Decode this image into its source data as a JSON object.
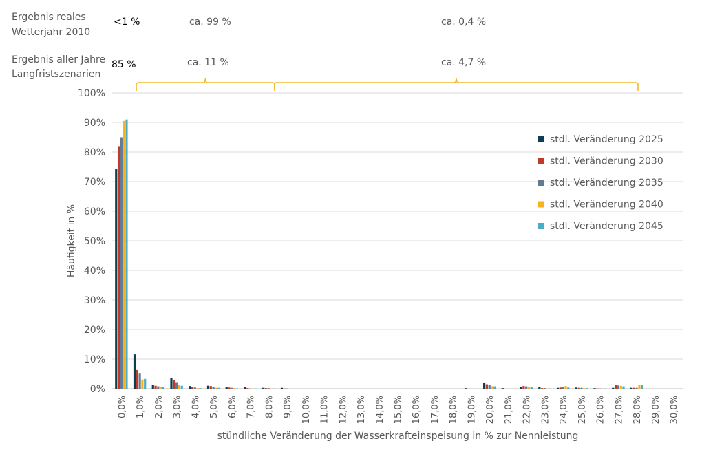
{
  "annotations": {
    "row1_label_line1": "Ergebnis reales",
    "row1_label_line2": "Wetterjahr 2010",
    "row1_val_a": "<1 %",
    "row1_val_b": "ca. 99 %",
    "row1_val_c": "ca. 0,4 %",
    "row2_label_line1": "Ergebnis aller Jahre",
    "row2_label_line2": "Langfristszenarien",
    "row2_val_a": "85 %",
    "row2_val_b": "ca. 11 %",
    "row2_val_c": "ca. 4,7 %",
    "bracket_color": "#F2B827"
  },
  "chart_data": {
    "type": "bar",
    "title": "",
    "xlabel": "stündliche Veränderung der Wasserkrafteinspeisung in % zur Nennleistung",
    "ylabel": "Häufigkeit in %",
    "ylim": [
      0,
      100
    ],
    "yticks": [
      "0%",
      "10%",
      "20%",
      "30%",
      "40%",
      "50%",
      "60%",
      "70%",
      "80%",
      "90%",
      "100%"
    ],
    "grid": true,
    "legend_position": "right",
    "categories": [
      "0,0%",
      "1,0%",
      "2,0%",
      "3,0%",
      "4,0%",
      "5,0%",
      "6,0%",
      "7,0%",
      "8,0%",
      "9,0%",
      "10,0%",
      "11,0%",
      "12,0%",
      "13,0%",
      "14,0%",
      "15,0%",
      "16,0%",
      "17,0%",
      "18,0%",
      "19,0%",
      "20,0%",
      "21,0%",
      "22,0%",
      "23,0%",
      "24,0%",
      "25,0%",
      "26,0%",
      "27,0%",
      "28,0%",
      "29,0%",
      "30,0%"
    ],
    "series": [
      {
        "name": "stdl. Veränderung 2025",
        "color": "#0E3D4E",
        "values": [
          74.2,
          11.6,
          1.3,
          3.6,
          0.9,
          1.0,
          0.5,
          0.5,
          0.3,
          0.3,
          0,
          0,
          0,
          0,
          0,
          0,
          0,
          0,
          0,
          0.2,
          2.1,
          0.2,
          0.6,
          0.5,
          0.3,
          0.4,
          0.2,
          0.3,
          0.3,
          0,
          0
        ]
      },
      {
        "name": "stdl. Veränderung 2030",
        "color": "#C0392B",
        "values": [
          82.0,
          6.3,
          1.0,
          2.8,
          0.5,
          0.9,
          0.4,
          0.2,
          0.2,
          0.1,
          0,
          0,
          0,
          0,
          0,
          0,
          0,
          0,
          0,
          0,
          1.5,
          0,
          0.9,
          0.2,
          0.4,
          0.3,
          0.1,
          1.2,
          0.3,
          0,
          0
        ]
      },
      {
        "name": "stdl. Veränderung 2035",
        "color": "#637A91",
        "values": [
          85.0,
          5.3,
          0.8,
          2.2,
          0.4,
          0.5,
          0.3,
          0.1,
          0.2,
          0.1,
          0,
          0,
          0,
          0,
          0,
          0,
          0,
          0,
          0,
          0,
          1.2,
          0,
          0.8,
          0.2,
          0.6,
          0.3,
          0.1,
          1.1,
          0.3,
          0,
          0
        ]
      },
      {
        "name": "stdl. Veränderung 2040",
        "color": "#F9B21E",
        "values": [
          90.5,
          3.1,
          0.5,
          1.2,
          0.2,
          0.3,
          0.2,
          0.1,
          0.1,
          0,
          0,
          0,
          0,
          0,
          0,
          0,
          0,
          0,
          0,
          0,
          0.8,
          0,
          0.5,
          0.1,
          0.9,
          0.2,
          0.1,
          1.0,
          1.3,
          0,
          0
        ]
      },
      {
        "name": "stdl. Veränderung 2045",
        "color": "#4BACC6",
        "values": [
          91.0,
          3.3,
          0.5,
          1.0,
          0.2,
          0.3,
          0.1,
          0.1,
          0.1,
          0,
          0,
          0,
          0,
          0,
          0,
          0,
          0,
          0,
          0,
          0,
          0.8,
          0,
          0.5,
          0.1,
          0.4,
          0.2,
          0.1,
          0.8,
          1.2,
          0,
          0
        ]
      }
    ]
  }
}
